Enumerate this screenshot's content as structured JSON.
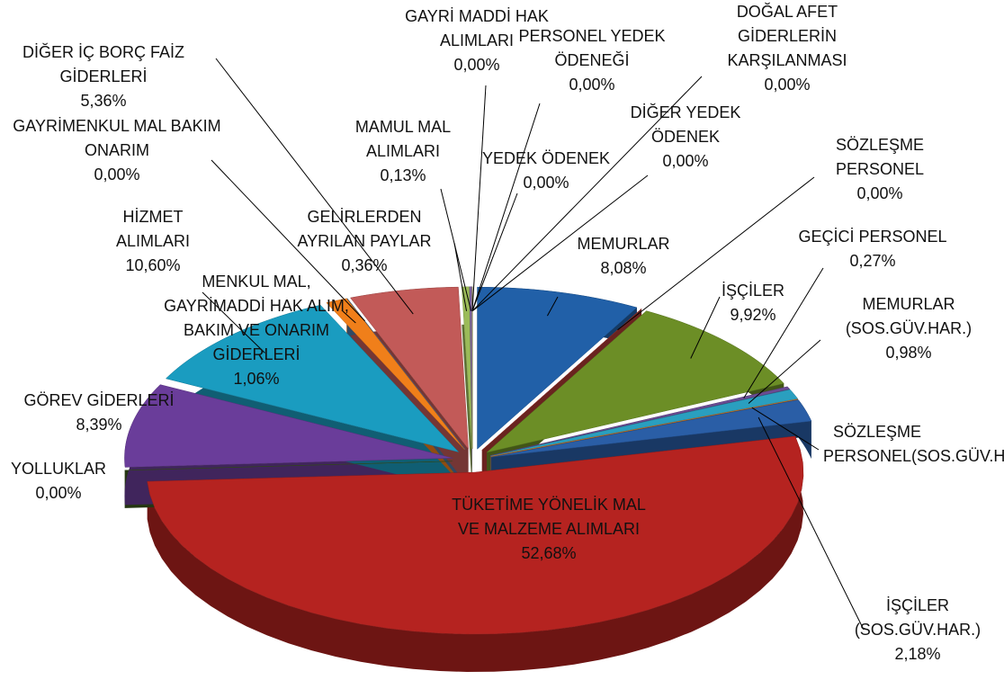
{
  "chart_data": {
    "type": "pie",
    "categories": [
      "MEMURLAR",
      "SÖZLEŞME PERSONEL",
      "İŞÇİLER",
      "GEÇİCİ PERSONEL",
      "MEMURLAR (SOS.GÜV.HAR.)",
      "SÖZLEŞME PERSONEL(SOS.GÜV.HAR)…",
      "İŞÇİLER (SOS.GÜV.HAR.)",
      "TÜKETİME YÖNELİK MAL VE MALZEME ALIMLARI",
      "YOLLUKLAR",
      "GÖREV GİDERLERİ",
      "HİZMET ALIMLARI",
      "MENKUL MAL, GAYRİMADDİ HAK ALIM, BAKIM VE ONARIM GİDERLERİ",
      "GAYRİMENKUL MAL BAKIM ONARIM",
      "DİĞER İÇ BORÇ FAİZ GİDERLERİ",
      "GELİRLERDEN AYRILAN PAYLAR",
      "MAMUL MAL ALIMLARI",
      "GAYRİ MADDİ HAK ALIMLARI",
      "PERSONEL YEDEK ÖDENEĞİ",
      "YEDEK ÖDENEK",
      "DİĞER YEDEK ÖDENEK",
      "DOĞAL AFET GİDERLERİN KARŞILANMASI"
    ],
    "values": [
      8.08,
      0,
      9.92,
      0.27,
      0.98,
      0,
      2.18,
      52.68,
      0,
      8.39,
      10.6,
      1.06,
      0,
      5.36,
      0.36,
      0.13,
      0,
      0,
      0,
      0,
      0
    ],
    "value_labels": [
      "8,08%",
      "0,00%",
      "9,92%",
      "0,27%",
      "0,98%",
      null,
      "2,18%",
      "52,68%",
      "0,00%",
      "8,39%",
      "10,60%",
      "1,06%",
      "0,00%",
      "5,36%",
      "0,36%",
      "0,13%",
      "0,00%",
      "0,00%",
      "0,00%",
      "0,00%",
      "0,00%"
    ],
    "colors": [
      "#2160a8",
      "#b03a33",
      "#6c8e26",
      "#6a4c93",
      "#2a9fbf",
      "#f28a2e",
      "#2a5ea6",
      "#b52320",
      "#3d5a1e",
      "#6a3d9a",
      "#1a9cc0",
      "#f07f1a",
      "#4e79a7",
      "#c25a58",
      "#9bbb59",
      "#8064a2",
      "#4bacc6",
      "#f79646",
      "#1f497d",
      "#c0504d",
      "#9bbb59"
    ]
  }
}
